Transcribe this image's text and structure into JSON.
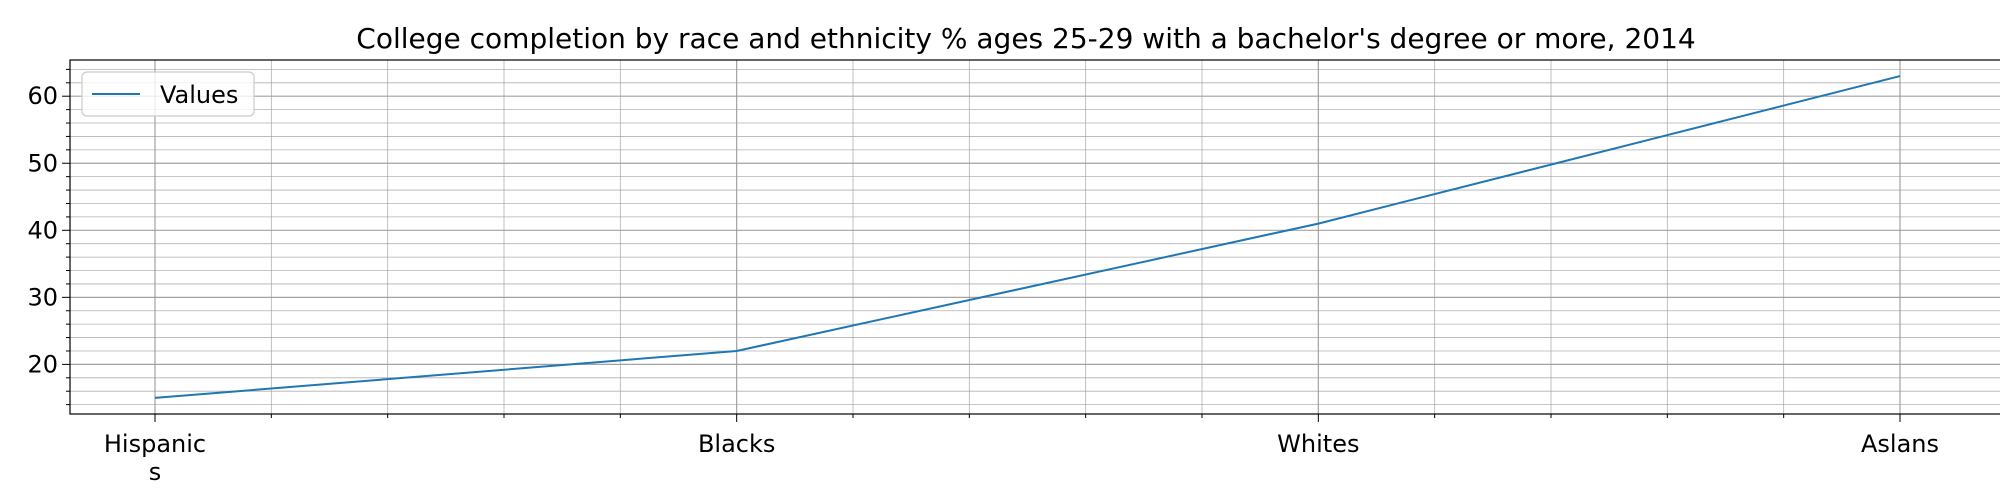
{
  "chart_data": {
    "type": "line",
    "title": "College completion by race and ethnicity % ages 25-29 with a bachelor's degree or more, 2014",
    "categories": [
      "Hispanics",
      "Blacks",
      "Whites",
      "Aslans"
    ],
    "category_display": [
      [
        "Hispanic",
        "s"
      ],
      [
        "Blacks"
      ],
      [
        "Whites"
      ],
      [
        "Aslans"
      ]
    ],
    "series": [
      {
        "name": "Values",
        "values": [
          15,
          22,
          41,
          63
        ]
      }
    ],
    "xlabel": "",
    "ylabel": "",
    "ylim": [
      12.6,
      65.4
    ],
    "y_major_ticks": [
      20,
      30,
      40,
      50,
      60
    ],
    "y_minor_step": 2,
    "x_minor_divisions": 5,
    "grid": true,
    "legend_position": "top-left",
    "colors": {
      "line": "#1f77b4",
      "grid": "#999999",
      "axis": "#000000",
      "legend_border": "#cccccc"
    }
  }
}
